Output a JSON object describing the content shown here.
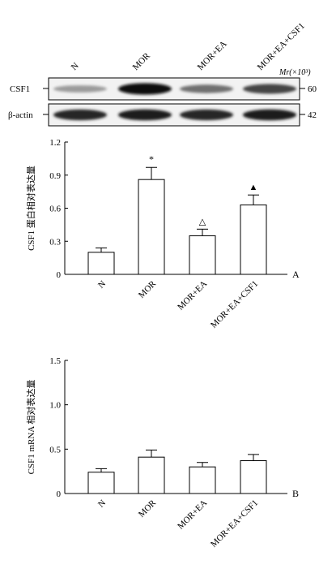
{
  "blot": {
    "lane_labels": [
      "N",
      "MOR",
      "MOR+EA",
      "MOR+EA+CSF1"
    ],
    "mr_label": "Mr(×10³)",
    "rows": [
      {
        "protein": "CSF1",
        "mw": "60",
        "intensity": [
          0.35,
          1.0,
          0.55,
          0.75
        ]
      },
      {
        "protein": "β-actin",
        "mw": "42",
        "intensity": [
          0.9,
          0.95,
          0.9,
          0.95
        ]
      }
    ]
  },
  "chart_data": [
    {
      "type": "bar",
      "panel": "A",
      "categories": [
        "N",
        "MOR",
        "MOR+EA",
        "MOR+EA+CSF1"
      ],
      "values": [
        0.2,
        0.86,
        0.35,
        0.63
      ],
      "errors": [
        0.04,
        0.11,
        0.06,
        0.09
      ],
      "markers": [
        "",
        "*",
        "△",
        "▲"
      ],
      "ylabel": "CSF1 蛋白相对表达量",
      "ylim": [
        0,
        1.2
      ],
      "yticks": [
        "0",
        "0.3",
        "0.6",
        "0.9",
        "1.2"
      ],
      "grid": false
    },
    {
      "type": "bar",
      "panel": "B",
      "categories": [
        "N",
        "MOR",
        "MOR+EA",
        "MOR+EA+CSF1"
      ],
      "values": [
        0.24,
        0.41,
        0.3,
        0.37
      ],
      "errors": [
        0.04,
        0.08,
        0.05,
        0.07
      ],
      "markers": [
        "",
        "",
        "",
        ""
      ],
      "ylabel": "CSF1 mRNA 相对表达量",
      "ylim": [
        0,
        1.5
      ],
      "yticks": [
        "0",
        "0.5",
        "1.0",
        "1.5"
      ],
      "grid": false
    }
  ]
}
